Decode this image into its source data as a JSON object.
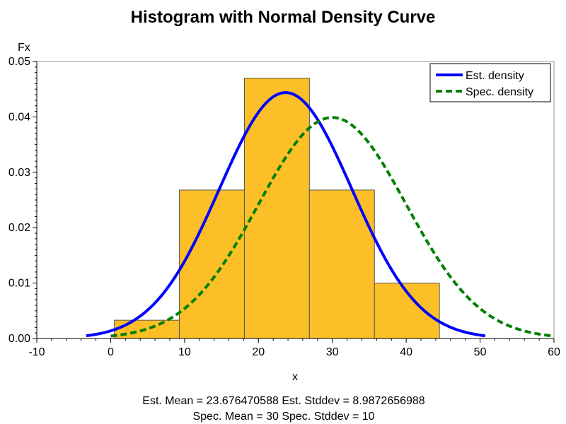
{
  "chart_data": {
    "type": "bar",
    "title": "Histogram with Normal Density Curve",
    "xlabel": "x",
    "ylabel": "Fx",
    "xlim": [
      -10,
      60
    ],
    "ylim": [
      0,
      0.05
    ],
    "x_ticks": [
      "-10",
      "0",
      "10",
      "20",
      "30",
      "40",
      "50",
      "60"
    ],
    "y_ticks": [
      "0.00",
      "0.01",
      "0.02",
      "0.03",
      "0.04",
      "0.05"
    ],
    "grid": false,
    "legend_position": "top-right",
    "histogram": {
      "bins": [
        {
          "x0": 0.5,
          "x1": 9.3,
          "value": 0.0033
        },
        {
          "x0": 9.3,
          "x1": 18.1,
          "value": 0.0268
        },
        {
          "x0": 18.1,
          "x1": 26.9,
          "value": 0.047
        },
        {
          "x0": 26.9,
          "x1": 35.7,
          "value": 0.0268
        },
        {
          "x0": 35.7,
          "x1": 44.5,
          "value": 0.01
        }
      ],
      "color": "#FDBF27",
      "edge_color": "#555555"
    },
    "series": [
      {
        "name": "Est. density",
        "type": "normal-curve",
        "mean": 23.676470588,
        "stddev": 8.9872656988,
        "x_range": [
          -3.3,
          50.7
        ],
        "color": "#0000FF",
        "line_style": "solid"
      },
      {
        "name": "Spec. density",
        "type": "normal-curve",
        "mean": 30,
        "stddev": 10,
        "x_range": [
          0,
          60
        ],
        "color": "#008000",
        "line_style": "dashed"
      }
    ],
    "footnotes": [
      "Est. Mean = 23.676470588  Est. Stddev = 8.9872656988",
      "Spec. Mean = 30  Spec. Stddev = 10"
    ]
  }
}
